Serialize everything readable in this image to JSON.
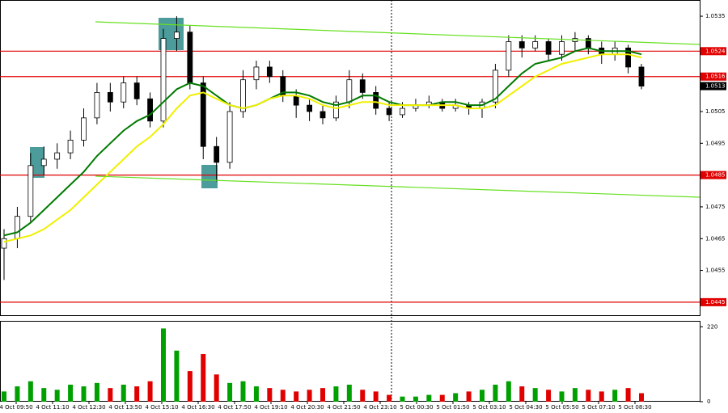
{
  "chart_data": {
    "type": "candlestick",
    "x_labels": [
      "4 Oct 09:50",
      "4 Oct 11:10",
      "4 Oct 12:30",
      "4 Oct 13:50",
      "4 Oct 15:10",
      "4 Oct 16:30",
      "4 Oct 17:50",
      "4 Oct 19:10",
      "4 Oct 20:30",
      "4 Oct 21:50",
      "4 Oct 23:10",
      "5 Oct 00:30",
      "5 Oct 01:50",
      "5 Oct 03:10",
      "5 Oct 04:30",
      "5 Oct 05:50",
      "5 Oct 07:10",
      "5 Oct 08:30"
    ],
    "open": [
      1.0462,
      1.0465,
      1.0472,
      1.0488,
      1.049,
      1.0492,
      1.0496,
      1.0503,
      1.0511,
      1.0508,
      1.0514,
      1.0509,
      1.0502,
      1.0528,
      1.053,
      1.0514,
      1.0494,
      1.0489,
      1.0505,
      1.0515,
      1.0519,
      1.0516,
      1.051,
      1.0507,
      1.0505,
      1.0503,
      1.0508,
      1.0515,
      1.0511,
      1.0506,
      1.0504,
      1.0506,
      1.0507,
      1.0508,
      1.0506,
      1.0507,
      1.0506,
      1.0508,
      1.0518,
      1.0527,
      1.0525,
      1.0527,
      1.0523,
      1.0527,
      1.0528,
      1.0525,
      1.0523,
      1.0525,
      1.0519
    ],
    "high": [
      1.0468,
      1.0475,
      1.0492,
      1.0494,
      1.0495,
      1.0499,
      1.0506,
      1.0514,
      1.0514,
      1.0516,
      1.0516,
      1.0511,
      1.0531,
      1.0535,
      1.0532,
      1.0516,
      1.0497,
      1.0508,
      1.0518,
      1.0521,
      1.0521,
      1.0518,
      1.0512,
      1.0509,
      1.0507,
      1.051,
      1.0518,
      1.0517,
      1.0513,
      1.0508,
      1.0508,
      1.0509,
      1.051,
      1.0509,
      1.0509,
      1.0508,
      1.0509,
      1.052,
      1.0529,
      1.0529,
      1.0529,
      1.0528,
      1.0529,
      1.053,
      1.0529,
      1.0527,
      1.0527,
      1.0526,
      1.052
    ],
    "low": [
      1.0452,
      1.0462,
      1.047,
      1.0485,
      1.0487,
      1.049,
      1.0494,
      1.0501,
      1.0505,
      1.0506,
      1.0507,
      1.05,
      1.05,
      1.0524,
      1.0512,
      1.049,
      1.0483,
      1.0487,
      1.0503,
      1.0512,
      1.0514,
      1.0508,
      1.0503,
      1.0502,
      1.0501,
      1.0502,
      1.0506,
      1.0509,
      1.0504,
      1.0502,
      1.0503,
      1.0505,
      1.0506,
      1.0505,
      1.0505,
      1.0504,
      1.0503,
      1.0506,
      1.0516,
      1.0522,
      1.0524,
      1.0521,
      1.0521,
      1.0524,
      1.0523,
      1.052,
      1.0521,
      1.0517,
      1.0512
    ],
    "close": [
      1.0465,
      1.0472,
      1.0488,
      1.049,
      1.0492,
      1.0496,
      1.0503,
      1.0511,
      1.0508,
      1.0514,
      1.0509,
      1.0502,
      1.0528,
      1.053,
      1.0514,
      1.0494,
      1.0489,
      1.0505,
      1.0515,
      1.0519,
      1.0516,
      1.051,
      1.0507,
      1.0505,
      1.0503,
      1.0508,
      1.0515,
      1.0511,
      1.0506,
      1.0504,
      1.0506,
      1.0507,
      1.0508,
      1.0506,
      1.0507,
      1.0506,
      1.0508,
      1.0518,
      1.0527,
      1.0525,
      1.0527,
      1.0523,
      1.0527,
      1.0528,
      1.0525,
      1.0523,
      1.0525,
      1.0519,
      1.0513
    ],
    "moving_averages": [
      {
        "color": "#007a00",
        "values": [
          1.0466,
          1.0467,
          1.047,
          1.0474,
          1.0478,
          1.0482,
          1.0486,
          1.0491,
          1.0495,
          1.0499,
          1.0502,
          1.0504,
          1.0508,
          1.0512,
          1.0514,
          1.0513,
          1.051,
          1.0507,
          1.0506,
          1.0507,
          1.0509,
          1.0511,
          1.0511,
          1.051,
          1.0508,
          1.0507,
          1.0508,
          1.051,
          1.051,
          1.0508,
          1.0507,
          1.0507,
          1.0507,
          1.0508,
          1.0508,
          1.0507,
          1.0507,
          1.0509,
          1.0513,
          1.0517,
          1.052,
          1.0521,
          1.0522,
          1.0524,
          1.0525,
          1.0524,
          1.0524,
          1.0524,
          1.0523
        ]
      },
      {
        "color": "#f0f000",
        "values": [
          1.0464,
          1.0465,
          1.0466,
          1.0468,
          1.0471,
          1.0474,
          1.0478,
          1.0482,
          1.0486,
          1.049,
          1.0494,
          1.0497,
          1.0501,
          1.0506,
          1.051,
          1.0511,
          1.0509,
          1.0507,
          1.0506,
          1.0507,
          1.0509,
          1.051,
          1.051,
          1.0509,
          1.0507,
          1.0506,
          1.0507,
          1.0508,
          1.0508,
          1.0507,
          1.0507,
          1.0507,
          1.0507,
          1.0507,
          1.0507,
          1.0506,
          1.0506,
          1.0507,
          1.051,
          1.0513,
          1.0516,
          1.0518,
          1.052,
          1.0521,
          1.0522,
          1.0523,
          1.0523,
          1.0523,
          1.0522
        ]
      }
    ],
    "levels": [
      {
        "value": 1.0524,
        "color": "#e00000"
      },
      {
        "value": 1.0516,
        "color": "#e00000"
      },
      {
        "value": 1.0485,
        "color": "#e00000"
      },
      {
        "value": 1.0445,
        "color": "#e00000"
      }
    ],
    "current_price": 1.0513,
    "ylim": [
      1.04409,
      1.05401
    ],
    "yticks": [
      1.0535,
      1.0505,
      1.0495,
      1.0475,
      1.0465,
      1.0455
    ],
    "volume": [
      30,
      45,
      60,
      40,
      35,
      50,
      45,
      55,
      40,
      50,
      45,
      60,
      215,
      150,
      90,
      140,
      80,
      55,
      60,
      45,
      40,
      35,
      30,
      35,
      40,
      45,
      50,
      35,
      30,
      20,
      15,
      15,
      20,
      20,
      25,
      30,
      35,
      50,
      60,
      45,
      40,
      35,
      30,
      40,
      35,
      30,
      35,
      40,
      25
    ],
    "volume_ylim": [
      0,
      235
    ],
    "volume_yticks": [
      0,
      220
    ],
    "up_color": "#00a000",
    "down_color": "#e00000"
  }
}
